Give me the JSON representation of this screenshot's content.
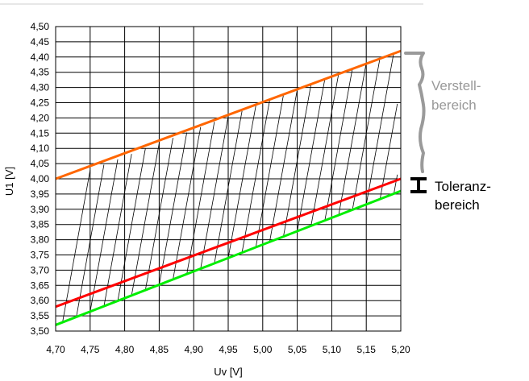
{
  "chart_data": {
    "type": "line",
    "xlabel": "Uv [V]",
    "ylabel": "U1 [V]",
    "xlim": [
      4.7,
      5.2
    ],
    "ylim": [
      3.5,
      4.5
    ],
    "x_ticks": [
      "4,70",
      "4,75",
      "4,80",
      "4,85",
      "4,90",
      "4,95",
      "5,00",
      "5,05",
      "5,10",
      "5,15",
      "5,20"
    ],
    "y_ticks": [
      "3,50",
      "3,55",
      "3,60",
      "3,65",
      "3,70",
      "3,75",
      "3,80",
      "3,85",
      "3,90",
      "3,95",
      "4,00",
      "4,05",
      "4,10",
      "4,15",
      "4,20",
      "4,25",
      "4,30",
      "4,35",
      "4,40",
      "4,45",
      "4,50"
    ],
    "grid": true,
    "series": [
      {
        "x": [
          4.7,
          5.2
        ],
        "y": [
          4.0,
          4.42
        ],
        "color": "#ff6600"
      },
      {
        "x": [
          4.7,
          5.2
        ],
        "y": [
          3.58,
          4.0
        ],
        "color": "#ff0000"
      },
      {
        "x": [
          4.7,
          5.2
        ],
        "y": [
          3.52,
          3.96
        ],
        "color": "#00ee00"
      }
    ],
    "hatch_color": "#000000",
    "annotations": [
      {
        "text": "Verstell-",
        "color": "#999999"
      },
      {
        "text": "bereich",
        "color": "#999999"
      },
      {
        "text": "Toleranz-",
        "color": "#000000"
      },
      {
        "text": "bereich",
        "color": "#000000"
      }
    ]
  }
}
